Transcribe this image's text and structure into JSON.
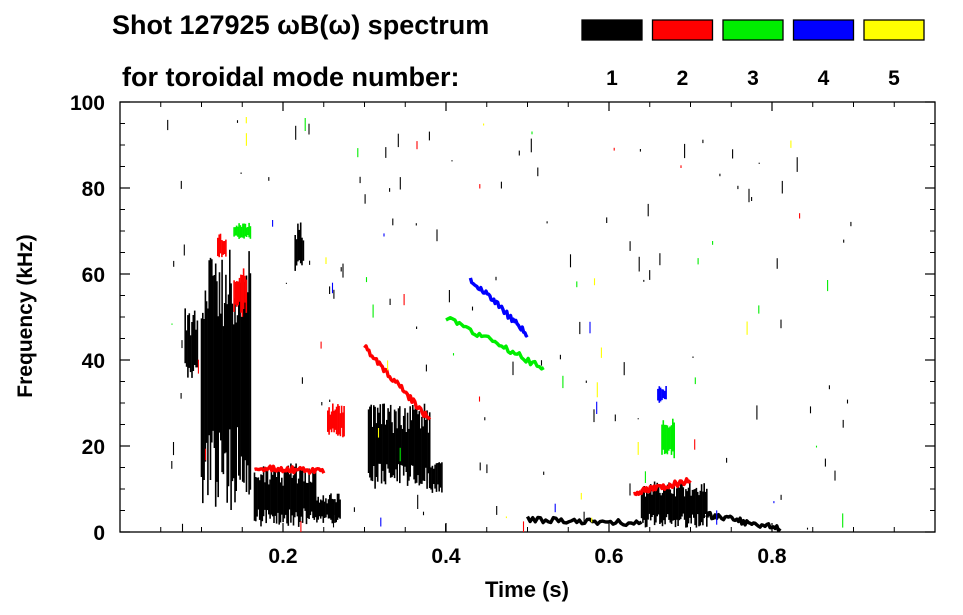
{
  "chart_data": {
    "type": "heatmap",
    "title": "Shot 127925 ωB(ω) spectrum",
    "subtitle": "for toroidal mode number:",
    "xlabel": "Time (s)",
    "ylabel": "Frequency (kHz)",
    "xlim": [
      0.0,
      1.0
    ],
    "ylim": [
      0,
      100
    ],
    "xticks": [
      0.2,
      0.4,
      0.6,
      0.8
    ],
    "xtick_labels": [
      "0.2",
      "0.4",
      "0.6",
      "0.8"
    ],
    "yticks": [
      0,
      20,
      40,
      60,
      80,
      100
    ],
    "ytick_labels": [
      "0",
      "20",
      "40",
      "60",
      "80",
      "100"
    ],
    "legend": [
      {
        "n": "1",
        "color": "#000000"
      },
      {
        "n": "2",
        "color": "#ff0000"
      },
      {
        "n": "3",
        "color": "#00ee00"
      },
      {
        "n": "4",
        "color": "#0000ff"
      },
      {
        "n": "5",
        "color": "#ffff00"
      }
    ],
    "features": [
      {
        "mode": 1,
        "shape": "patch",
        "t": [
          0.08,
          0.095
        ],
        "f": [
          34,
          52
        ]
      },
      {
        "mode": 1,
        "shape": "patch",
        "t": [
          0.1,
          0.16
        ],
        "f": [
          5,
          70
        ]
      },
      {
        "mode": 1,
        "shape": "patch",
        "t": [
          0.165,
          0.24
        ],
        "f": [
          1,
          16
        ]
      },
      {
        "mode": 1,
        "shape": "patch",
        "t": [
          0.24,
          0.27
        ],
        "f": [
          2,
          9
        ]
      },
      {
        "mode": 1,
        "shape": "patch",
        "t": [
          0.215,
          0.225
        ],
        "f": [
          60,
          72
        ]
      },
      {
        "mode": 1,
        "shape": "patch",
        "t": [
          0.305,
          0.38
        ],
        "f": [
          10,
          30
        ]
      },
      {
        "mode": 1,
        "shape": "patch",
        "t": [
          0.38,
          0.395
        ],
        "f": [
          9,
          17
        ]
      },
      {
        "mode": 1,
        "shape": "patch",
        "t": [
          0.64,
          0.72
        ],
        "f": [
          1,
          12
        ]
      },
      {
        "mode": 1,
        "shape": "curve",
        "t": [
          0.72,
          0.81
        ],
        "f": [
          4,
          0.8
        ]
      },
      {
        "mode": 1,
        "shape": "curve",
        "t": [
          0.5,
          0.64
        ],
        "f": [
          3,
          2
        ]
      },
      {
        "mode": 2,
        "shape": "curve",
        "t": [
          0.3,
          0.38
        ],
        "f": [
          43,
          26
        ]
      },
      {
        "mode": 2,
        "shape": "patch",
        "t": [
          0.255,
          0.275
        ],
        "f": [
          22,
          30
        ]
      },
      {
        "mode": 2,
        "shape": "curve",
        "t": [
          0.165,
          0.25
        ],
        "f": [
          15,
          14
        ]
      },
      {
        "mode": 2,
        "shape": "curve",
        "t": [
          0.63,
          0.7
        ],
        "f": [
          9,
          12
        ]
      },
      {
        "mode": 2,
        "shape": "patch",
        "t": [
          0.14,
          0.155
        ],
        "f": [
          50,
          62
        ]
      },
      {
        "mode": 2,
        "shape": "patch",
        "t": [
          0.12,
          0.13
        ],
        "f": [
          63,
          70
        ]
      },
      {
        "mode": 3,
        "shape": "curve",
        "t": [
          0.4,
          0.52
        ],
        "f": [
          50,
          38
        ]
      },
      {
        "mode": 3,
        "shape": "patch",
        "t": [
          0.665,
          0.68
        ],
        "f": [
          17,
          27
        ]
      },
      {
        "mode": 3,
        "shape": "patch",
        "t": [
          0.14,
          0.16
        ],
        "f": [
          68,
          72
        ]
      },
      {
        "mode": 4,
        "shape": "curve",
        "t": [
          0.43,
          0.5
        ],
        "f": [
          59,
          46
        ]
      },
      {
        "mode": 4,
        "shape": "patch",
        "t": [
          0.66,
          0.67
        ],
        "f": [
          30,
          34
        ]
      }
    ]
  }
}
